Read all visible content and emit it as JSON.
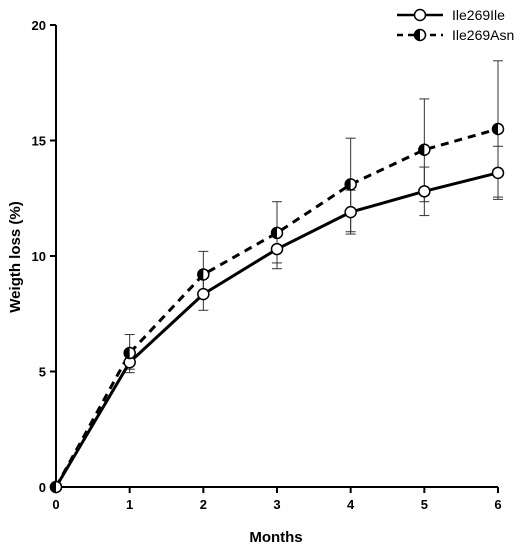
{
  "chart_data": {
    "type": "line",
    "xlabel": "Months",
    "ylabel": "Weigth loss (%)",
    "xlim": [
      0,
      6
    ],
    "ylim": [
      0,
      20
    ],
    "xticks": [
      0,
      1,
      2,
      3,
      4,
      5,
      6
    ],
    "yticks": [
      0,
      5,
      10,
      15,
      20
    ],
    "grid": false,
    "legend_position": "top-right",
    "x": [
      0,
      1,
      2,
      3,
      4,
      5,
      6
    ],
    "series": [
      {
        "name": "Ile269Ile",
        "line_style": "solid",
        "marker": "open-circle",
        "values": [
          0,
          5.4,
          8.35,
          10.3,
          11.9,
          12.8,
          13.6
        ],
        "error_low": [
          0,
          0.45,
          0.7,
          0.85,
          0.95,
          1.05,
          1.15
        ],
        "error_high": [
          0,
          0.45,
          0.7,
          0.85,
          0.95,
          1.05,
          1.15
        ]
      },
      {
        "name": "Ile269Asn",
        "line_style": "dashed",
        "marker": "half-filled-circle",
        "values": [
          0,
          5.8,
          9.2,
          11.0,
          13.1,
          14.6,
          15.5
        ],
        "error_low": [
          0,
          0.7,
          0.95,
          1.3,
          2.05,
          2.25,
          2.95
        ],
        "error_high": [
          0,
          0.8,
          1.0,
          1.35,
          2.0,
          2.2,
          2.95
        ]
      }
    ]
  }
}
